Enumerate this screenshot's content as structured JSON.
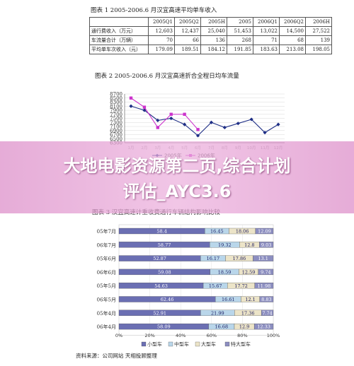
{
  "figure1": {
    "title": "图表 1    2005-2006.6 月汉宜高速平均单车收入",
    "headers": [
      "",
      "2005Q1",
      "2005Q2",
      "2005H",
      "2005",
      "2006Q1",
      "2006Q2",
      "2006H"
    ],
    "rows": [
      {
        "label": "通行费收入（万元）",
        "values": [
          "12,603",
          "12,437",
          "25,040",
          "51,453",
          "13,022",
          "14,500",
          "27,522"
        ]
      },
      {
        "label": "车流量合计（万辆）",
        "values": [
          "70",
          "66",
          "136",
          "268",
          "71",
          "68",
          "139"
        ]
      },
      {
        "label": "平均单车次收入（元）",
        "values": [
          "179.09",
          "189.51",
          "184.12",
          "191.85",
          "183.63",
          "213.08",
          "198.05"
        ]
      }
    ]
  },
  "figure2": {
    "title": "图表 2    2005-2006.6 月汉宜高速折合全程日均车流量",
    "chart_data": {
      "type": "line",
      "categories": [
        "1月",
        "2月",
        "3月",
        "4月",
        "5月",
        "6月",
        "7月",
        "8月",
        "9月",
        "10月",
        "11月",
        "12月"
      ],
      "ylim": [
        6300,
        8700
      ],
      "yticks": [
        6300,
        6500,
        6700,
        6900,
        7100,
        7300,
        7500,
        7700,
        7900,
        8100,
        8300,
        8500,
        8700
      ],
      "series": [
        {
          "name": "2005年",
          "color": "#1f2f86",
          "values": [
            8100,
            7900,
            7400,
            7500,
            7200,
            6650,
            7300,
            7050,
            7250,
            7450,
            6800,
            7200
          ]
        },
        {
          "name": "2006年",
          "color": "#cc33cc",
          "values": [
            8500,
            8050,
            7050,
            7700,
            7700,
            6950,
            null,
            null,
            null,
            null,
            null,
            null
          ]
        }
      ]
    }
  },
  "figure3": {
    "title": "图表 3    汉宜高速计重收费通行车辆结构影响比较",
    "chart_data": {
      "type": "bar",
      "orientation": "horizontal-stacked-100",
      "categories": [
        "05年7月",
        "06年7月",
        "05年6月",
        "06年6月",
        "05年5月",
        "06年5月",
        "05年4月",
        "06年4月"
      ],
      "xticks": [
        "0%",
        "20%",
        "40%",
        "60%",
        "80%",
        "100%"
      ],
      "series": [
        {
          "name": "小型车",
          "color": "#6b6fb3",
          "values": [
            58.4,
            58.77,
            52.87,
            59.08,
            54.63,
            62.46,
            52.91,
            58.09
          ]
        },
        {
          "name": "中型车",
          "color": "#b9d6ea",
          "values": [
            16.45,
            19.32,
            16.17,
            18.59,
            15.67,
            16.61,
            21.99,
            16.68
          ]
        },
        {
          "name": "大型车",
          "color": "#ece4c8",
          "values": [
            18.06,
            12.8,
            17.86,
            12.59,
            17.72,
            12.1,
            17.36,
            12.9
          ]
        },
        {
          "name": "特大型车",
          "color": "#8c8ec0",
          "values": [
            12.09,
            9.03,
            13.1,
            9.74,
            11.98,
            8.83,
            7.74,
            12.33
          ]
        }
      ],
      "labels": [
        [
          "58.4",
          "16.45",
          "18.06",
          "12.09"
        ],
        [
          "58.77",
          "19.32",
          "12.8",
          "9.03"
        ],
        [
          "52.87",
          "16.17",
          "17.86",
          "13.1"
        ],
        [
          "59.08",
          "18.59",
          "12.59",
          "9.74"
        ],
        [
          "54.63",
          "15.67",
          "17.72",
          "11.98"
        ],
        [
          "62.46",
          "16.61",
          "12.1",
          "8.83"
        ],
        [
          "52.91",
          "21.99",
          "17.36",
          "7.74"
        ],
        [
          "58.09",
          "16.68",
          "12.9",
          "12.33"
        ]
      ]
    }
  },
  "banner": {
    "line1": "大地电影资源第二页,综合计划",
    "line2": "评估_AYC3.6"
  },
  "source": "资料来源：公司网站  天相投顾整理"
}
